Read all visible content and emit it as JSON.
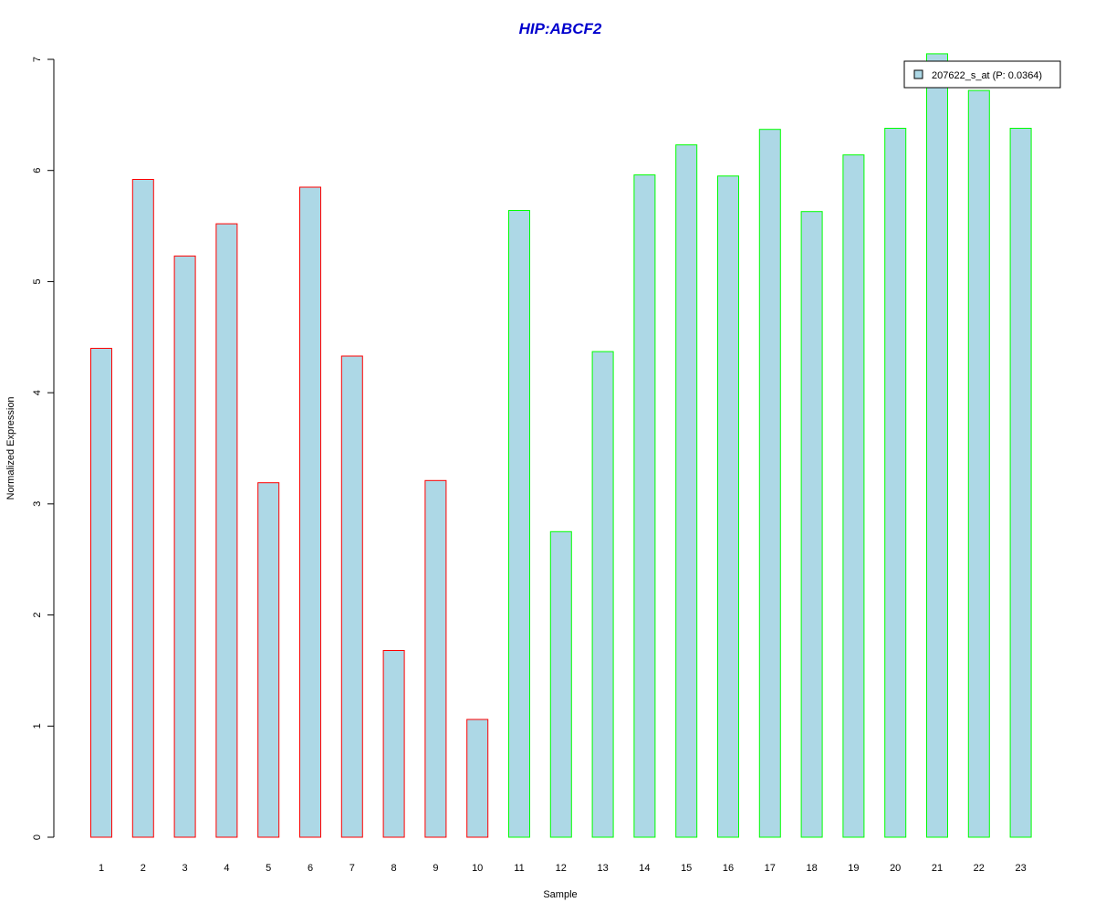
{
  "chart_data": {
    "type": "bar",
    "title": "HIP:ABCF2",
    "xlabel": "Sample",
    "ylabel": "Normalized Expression",
    "ylim": [
      0,
      7
    ],
    "y_ticks": [
      0,
      1,
      2,
      3,
      4,
      5,
      6,
      7
    ],
    "categories": [
      "1",
      "2",
      "3",
      "4",
      "5",
      "6",
      "7",
      "8",
      "9",
      "10",
      "11",
      "12",
      "13",
      "14",
      "15",
      "16",
      "17",
      "18",
      "19",
      "20",
      "21",
      "22",
      "23"
    ],
    "values": [
      4.4,
      5.92,
      5.23,
      5.52,
      3.19,
      5.85,
      4.33,
      1.68,
      3.21,
      1.06,
      5.64,
      2.75,
      4.37,
      5.96,
      6.23,
      5.95,
      6.37,
      5.63,
      6.14,
      6.38,
      7.05,
      6.72,
      6.38
    ],
    "groups": [
      "red",
      "red",
      "red",
      "red",
      "red",
      "red",
      "red",
      "red",
      "red",
      "red",
      "green",
      "green",
      "green",
      "green",
      "green",
      "green",
      "green",
      "green",
      "green",
      "green",
      "green",
      "green",
      "green"
    ],
    "legend": {
      "label": "207622_s_at (P: 0.0364)",
      "position": "top-right"
    },
    "grid": false,
    "colors": {
      "bar_fill": "#ADD8E6",
      "group_a_border": "#FF0000",
      "group_b_border": "#00FF00",
      "title": "#0000CD",
      "axis": "#000000"
    }
  }
}
